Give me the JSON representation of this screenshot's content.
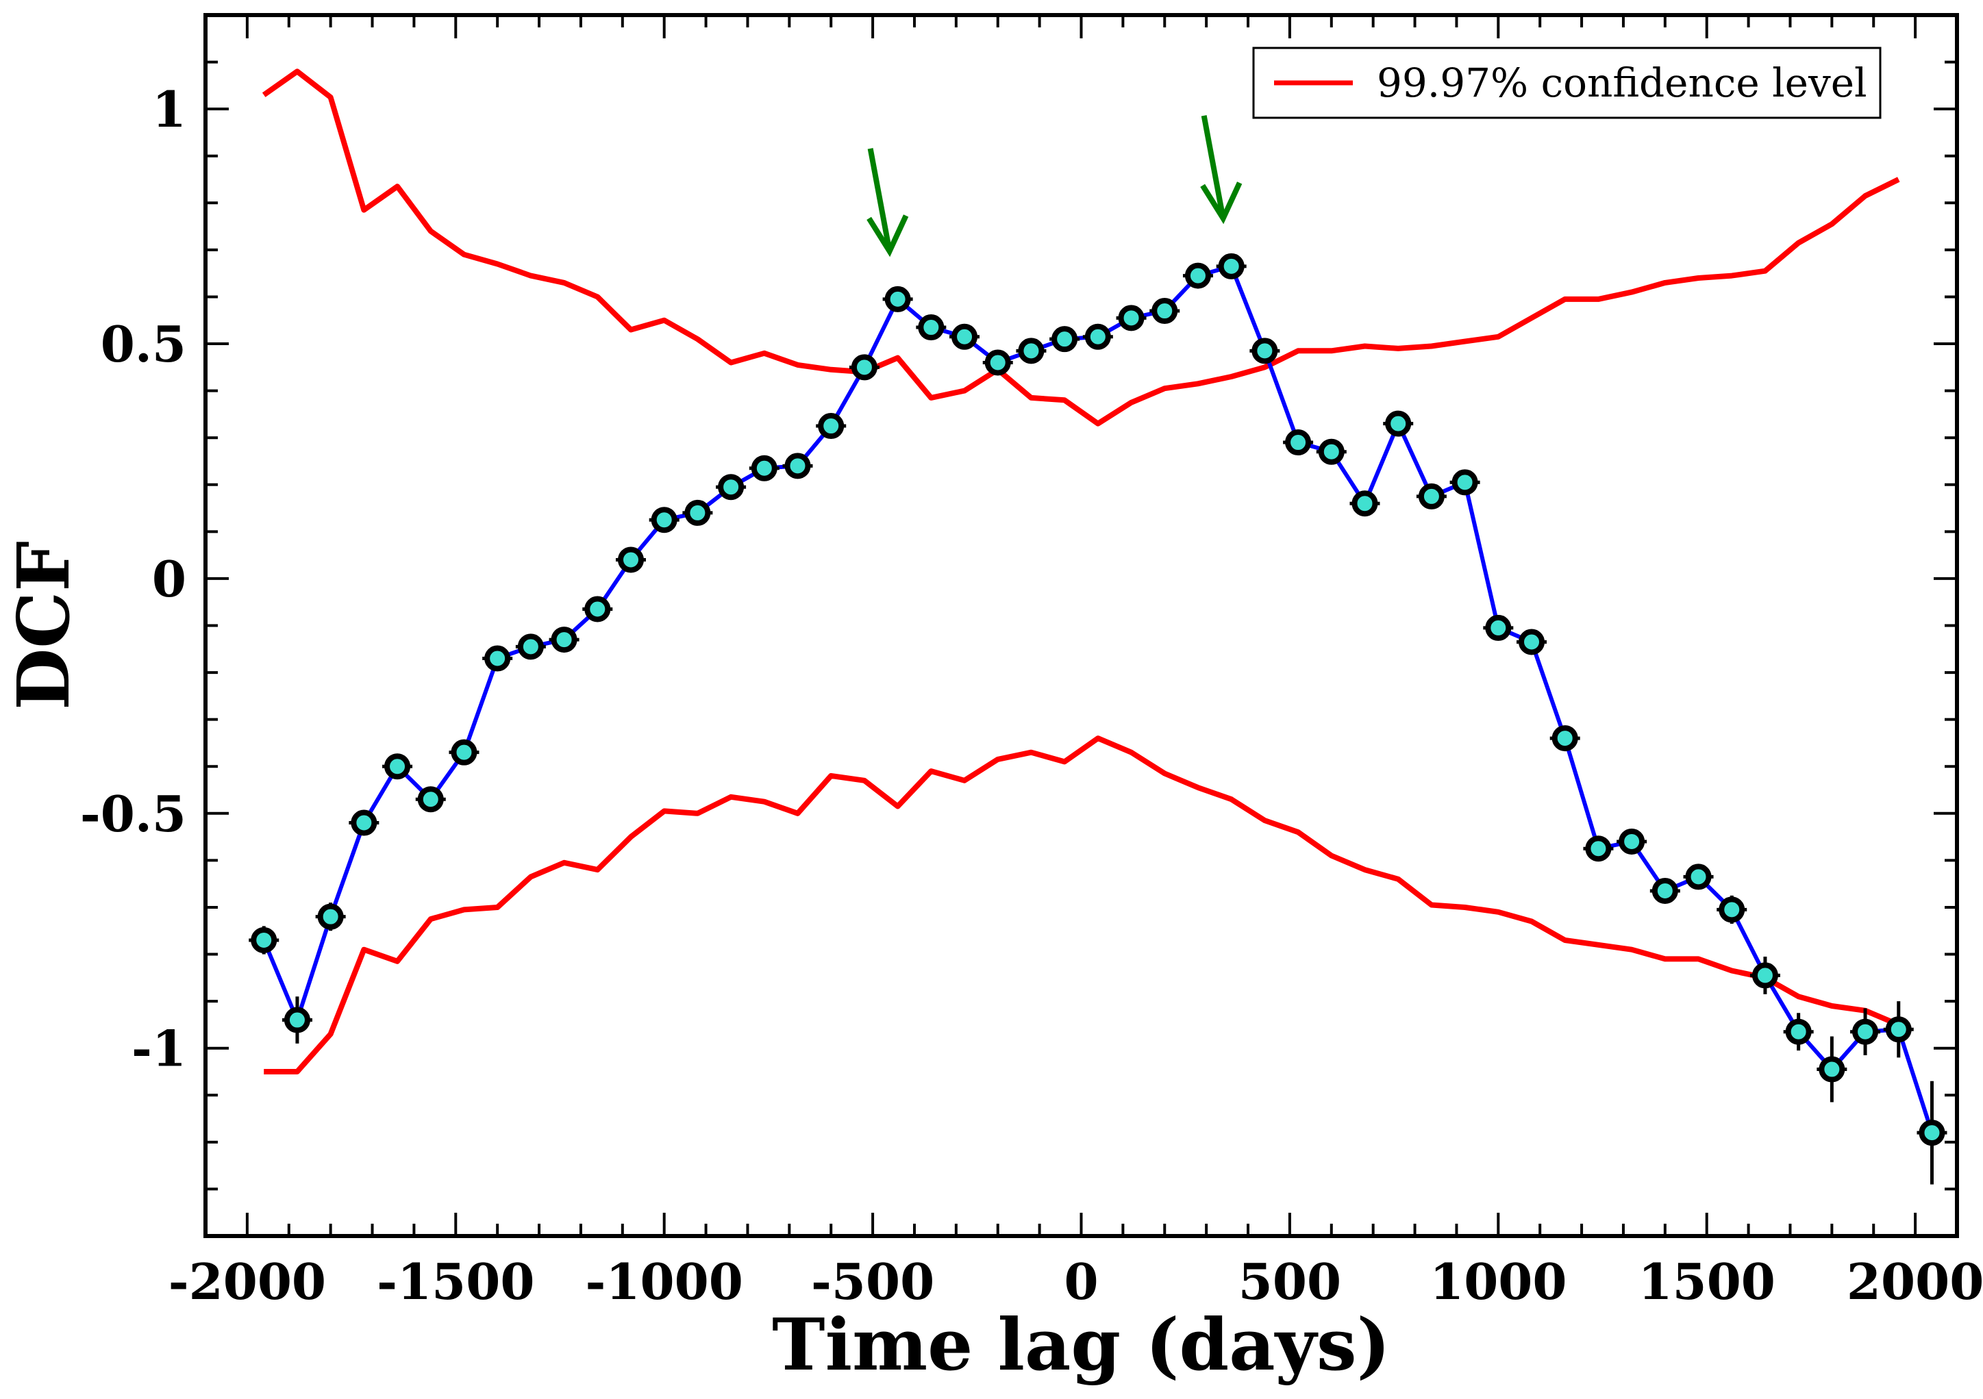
{
  "chart_data": {
    "type": "line",
    "title": "",
    "xlabel": "Time lag (days)",
    "ylabel": "DCF",
    "xlim": [
      -2100,
      2100
    ],
    "ylim": [
      -1.4,
      1.2
    ],
    "x_ticks": [
      -2000,
      -1500,
      -1000,
      -500,
      0,
      500,
      1000,
      1500,
      2000
    ],
    "x_tick_labels": [
      "-2000",
      "-1500",
      "-1000",
      "-500",
      "0",
      "500",
      "1000",
      "1500",
      "2000"
    ],
    "y_ticks": [
      -1,
      -0.5,
      0,
      0.5,
      1
    ],
    "y_tick_labels": [
      "-1",
      "-0.5",
      "0",
      "0.5",
      "1"
    ],
    "legend": {
      "placement": "top-right",
      "entries": [
        {
          "label": "99.97% confidence level",
          "color": "#ff0000"
        }
      ]
    },
    "series": [
      {
        "name": "DCF",
        "line_color": "#0000ff",
        "marker_color": "#40e0d0",
        "x": [
          -1960,
          -1880,
          -1800,
          -1720,
          -1640,
          -1560,
          -1480,
          -1400,
          -1320,
          -1240,
          -1160,
          -1080,
          -1000,
          -920,
          -840,
          -760,
          -680,
          -600,
          -520,
          -440,
          -360,
          -280,
          -200,
          -120,
          -40,
          40,
          120,
          200,
          280,
          360,
          440,
          520,
          600,
          680,
          760,
          840,
          920,
          1000,
          1080,
          1160,
          1240,
          1320,
          1400,
          1480,
          1560,
          1640,
          1720,
          1800,
          1880,
          1960,
          2040
        ],
        "values": [
          -0.77,
          -0.94,
          -0.72,
          -0.52,
          -0.4,
          -0.47,
          -0.37,
          -0.17,
          -0.145,
          -0.13,
          -0.065,
          0.04,
          0.125,
          0.14,
          0.195,
          0.235,
          0.24,
          0.325,
          0.45,
          0.595,
          0.535,
          0.515,
          0.46,
          0.485,
          0.51,
          0.515,
          0.555,
          0.57,
          0.645,
          0.665,
          0.485,
          0.29,
          0.27,
          0.16,
          0.33,
          0.175,
          0.205,
          -0.105,
          -0.135,
          -0.34,
          -0.575,
          -0.56,
          -0.665,
          -0.635,
          -0.705,
          -0.845,
          -0.965,
          -1.045,
          -0.965,
          -0.96,
          -1.18
        ],
        "errors": [
          0.03,
          0.05,
          0.03,
          0.02,
          0.02,
          0.02,
          0.02,
          0.02,
          0.02,
          0.02,
          0.02,
          0.02,
          0.02,
          0.02,
          0.02,
          0.02,
          0.02,
          0.02,
          0.02,
          0.02,
          0.02,
          0.02,
          0.02,
          0.02,
          0.02,
          0.02,
          0.02,
          0.02,
          0.02,
          0.02,
          0.02,
          0.02,
          0.02,
          0.02,
          0.02,
          0.02,
          0.02,
          0.02,
          0.02,
          0.02,
          0.02,
          0.02,
          0.02,
          0.02,
          0.03,
          0.04,
          0.04,
          0.07,
          0.05,
          0.06,
          0.11
        ]
      },
      {
        "name": "99.97% confidence level (upper)",
        "line_color": "#ff0000",
        "x": [
          -1960,
          -1880,
          -1800,
          -1720,
          -1640,
          -1560,
          -1480,
          -1400,
          -1320,
          -1240,
          -1160,
          -1080,
          -1000,
          -920,
          -840,
          -760,
          -680,
          -600,
          -520,
          -440,
          -360,
          -280,
          -200,
          -120,
          -40,
          40,
          120,
          200,
          280,
          360,
          440,
          520,
          600,
          680,
          760,
          840,
          920,
          1000,
          1080,
          1160,
          1240,
          1320,
          1400,
          1480,
          1560,
          1640,
          1720,
          1800,
          1880,
          1960
        ],
        "values": [
          1.03,
          1.08,
          1.025,
          0.785,
          0.835,
          0.74,
          0.69,
          0.67,
          0.645,
          0.63,
          0.6,
          0.53,
          0.55,
          0.51,
          0.46,
          0.48,
          0.455,
          0.445,
          0.44,
          0.47,
          0.385,
          0.4,
          0.445,
          0.385,
          0.38,
          0.33,
          0.375,
          0.405,
          0.415,
          0.43,
          0.45,
          0.485,
          0.485,
          0.495,
          0.49,
          0.495,
          0.505,
          0.515,
          0.555,
          0.595,
          0.595,
          0.61,
          0.63,
          0.64,
          0.645,
          0.655,
          0.715,
          0.755,
          0.815,
          0.85
        ]
      },
      {
        "name": "99.97% confidence level (lower)",
        "line_color": "#ff0000",
        "x": [
          -1960,
          -1880,
          -1800,
          -1720,
          -1640,
          -1560,
          -1480,
          -1400,
          -1320,
          -1240,
          -1160,
          -1080,
          -1000,
          -920,
          -840,
          -760,
          -680,
          -600,
          -520,
          -440,
          -360,
          -280,
          -200,
          -120,
          -40,
          40,
          120,
          200,
          280,
          360,
          440,
          520,
          600,
          680,
          760,
          840,
          920,
          1000,
          1080,
          1160,
          1240,
          1320,
          1400,
          1480,
          1560,
          1640,
          1720,
          1800,
          1880,
          1960
        ],
        "values": [
          -1.05,
          -1.05,
          -0.97,
          -0.79,
          -0.815,
          -0.725,
          -0.705,
          -0.7,
          -0.635,
          -0.605,
          -0.62,
          -0.55,
          -0.495,
          -0.5,
          -0.465,
          -0.475,
          -0.5,
          -0.42,
          -0.43,
          -0.485,
          -0.41,
          -0.43,
          -0.385,
          -0.37,
          -0.39,
          -0.34,
          -0.37,
          -0.415,
          -0.445,
          -0.47,
          -0.515,
          -0.54,
          -0.59,
          -0.62,
          -0.64,
          -0.695,
          -0.7,
          -0.71,
          -0.73,
          -0.77,
          -0.78,
          -0.79,
          -0.81,
          -0.81,
          -0.835,
          -0.85,
          -0.89,
          -0.91,
          -0.92,
          -0.95
        ]
      }
    ],
    "annotations": [
      {
        "type": "arrow",
        "color": "#008000",
        "points_to": {
          "x": -440,
          "y": 0.595
        }
      },
      {
        "type": "arrow",
        "color": "#008000",
        "points_to": {
          "x": 360,
          "y": 0.665
        }
      }
    ]
  }
}
